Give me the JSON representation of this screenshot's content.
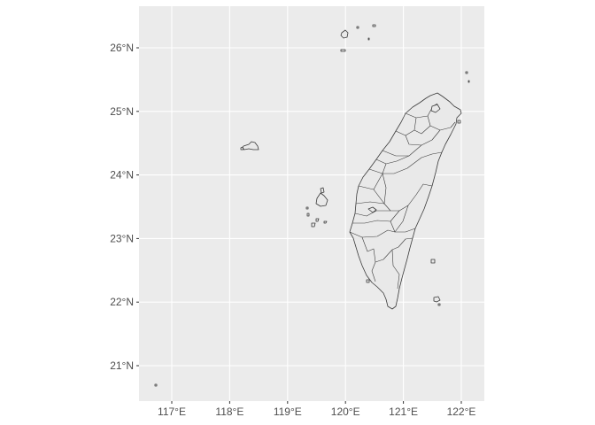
{
  "map": {
    "panel_background": "#ebebeb",
    "grid_color": "#ffffff",
    "land_fill": "#e9e9e9",
    "border_color": "#3a3a3a",
    "x_ticks": [
      {
        "value": 117,
        "label": "117°E"
      },
      {
        "value": 118,
        "label": "118°E"
      },
      {
        "value": 119,
        "label": "119°E"
      },
      {
        "value": 120,
        "label": "120°E"
      },
      {
        "value": 121,
        "label": "121°E"
      },
      {
        "value": 122,
        "label": "122°E"
      }
    ],
    "y_ticks": [
      {
        "value": 21,
        "label": "21°N"
      },
      {
        "value": 22,
        "label": "22°N"
      },
      {
        "value": 23,
        "label": "23°N"
      },
      {
        "value": 24,
        "label": "24°N"
      },
      {
        "value": 25,
        "label": "25°N"
      },
      {
        "value": 26,
        "label": "26°N"
      }
    ],
    "regions": [
      "Taiwan main island",
      "Penghu Islands",
      "Kinmen",
      "Matsu Islands",
      "Green Island",
      "Orchid Island",
      "Xiao Liuqiu",
      "Pratas"
    ]
  }
}
